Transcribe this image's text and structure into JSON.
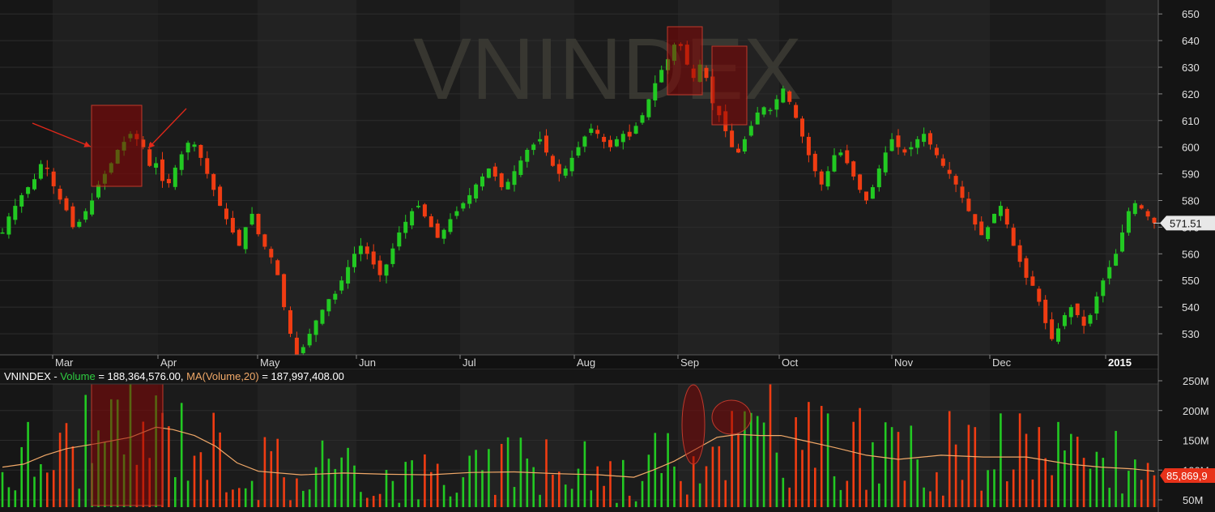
{
  "chart_data": [
    {
      "type": "candlestick",
      "title": "VNINDEX",
      "x_labels": [
        "Mar",
        "Apr",
        "May",
        "Jun",
        "Jul",
        "Aug",
        "Sep",
        "Oct",
        "Nov",
        "Dec",
        "2015"
      ],
      "y_ticks": [
        "650",
        "640",
        "630",
        "620",
        "610",
        "600",
        "590",
        "580",
        "570",
        "560",
        "550",
        "540",
        "530"
      ],
      "ylim": [
        520,
        652
      ],
      "last_price": "571.51",
      "grid": "on",
      "series": [
        {
          "name": "VNINDEX",
          "close_path": [
            [
              0,
              568
            ],
            [
              3,
              574
            ],
            [
              6,
              578
            ],
            [
              9,
              582
            ],
            [
              12,
              585
            ],
            [
              16,
              589
            ],
            [
              19,
              596
            ],
            [
              22,
              590
            ],
            [
              25,
              583
            ],
            [
              28,
              579
            ],
            [
              31,
              575
            ],
            [
              33,
              570
            ],
            [
              36,
              572
            ],
            [
              39,
              576
            ],
            [
              42,
              580
            ],
            [
              45,
              586
            ],
            [
              48,
              590
            ],
            [
              51,
              594
            ],
            [
              54,
              599
            ],
            [
              57,
              602
            ],
            [
              60,
              605
            ],
            [
              63,
              603
            ],
            [
              66,
              600
            ],
            [
              68,
              595
            ],
            [
              70,
              591
            ],
            [
              72,
              594
            ],
            [
              74,
              589
            ],
            [
              77,
              584
            ],
            [
              79,
              589
            ],
            [
              82,
              594
            ],
            [
              85,
              599
            ],
            [
              88,
              603
            ],
            [
              91,
              600
            ],
            [
              93,
              596
            ],
            [
              96,
              590
            ],
            [
              99,
              584
            ],
            [
              102,
              578
            ],
            [
              105,
              573
            ],
            [
              108,
              568
            ],
            [
              111,
              563
            ],
            [
              114,
              570
            ],
            [
              117,
              575
            ],
            [
              119,
              569
            ],
            [
              122,
              564
            ],
            [
              125,
              560
            ],
            [
              128,
              556
            ],
            [
              130,
              548
            ],
            [
              132,
              540
            ],
            [
              134,
              533
            ],
            [
              136,
              527
            ],
            [
              138,
              522
            ],
            [
              141,
              525
            ],
            [
              144,
              530
            ],
            [
              147,
              535
            ],
            [
              150,
              539
            ],
            [
              153,
              543
            ],
            [
              156,
              545
            ],
            [
              159,
              550
            ],
            [
              162,
              555
            ],
            [
              165,
              560
            ],
            [
              168,
              563
            ],
            [
              171,
              560
            ],
            [
              174,
              556
            ],
            [
              177,
              552
            ],
            [
              180,
              556
            ],
            [
              183,
              562
            ],
            [
              186,
              568
            ],
            [
              189,
              572
            ],
            [
              192,
              576
            ],
            [
              195,
              578
            ],
            [
              198,
              574
            ],
            [
              201,
              570
            ],
            [
              204,
              566
            ],
            [
              207,
              569
            ],
            [
              210,
              573
            ],
            [
              213,
              576
            ],
            [
              216,
              579
            ],
            [
              219,
              582
            ],
            [
              222,
              586
            ],
            [
              225,
              589
            ],
            [
              228,
              592
            ],
            [
              231,
              589
            ],
            [
              234,
              585
            ],
            [
              237,
              587
            ],
            [
              240,
              591
            ],
            [
              243,
              595
            ],
            [
              246,
              599
            ],
            [
              249,
              601
            ],
            [
              252,
              603
            ],
            [
              255,
              598
            ],
            [
              258,
              593
            ],
            [
              261,
              590
            ],
            [
              264,
              592
            ],
            [
              267,
              596
            ],
            [
              270,
              600
            ],
            [
              273,
              604
            ],
            [
              276,
              607
            ],
            [
              279,
              605
            ],
            [
              282,
              602
            ],
            [
              285,
              600
            ],
            [
              288,
              603
            ],
            [
              291,
              605
            ],
            [
              294,
              604
            ],
            [
              297,
              608
            ],
            [
              300,
              612
            ],
            [
              303,
              618
            ],
            [
              306,
              624
            ],
            [
              309,
              629
            ],
            [
              312,
              633
            ],
            [
              314,
              637
            ],
            [
              316,
              640
            ],
            [
              318,
              638
            ],
            [
              320,
              634
            ],
            [
              322,
              628
            ],
            [
              324,
              626
            ],
            [
              326,
              630
            ],
            [
              328,
              632
            ],
            [
              330,
              626
            ],
            [
              332,
              619
            ],
            [
              334,
              614
            ],
            [
              336,
              612
            ],
            [
              338,
              608
            ],
            [
              340,
              604
            ],
            [
              342,
              600
            ],
            [
              345,
              598
            ],
            [
              348,
              603
            ],
            [
              351,
              608
            ],
            [
              354,
              613
            ],
            [
              357,
              615
            ],
            [
              360,
              614
            ],
            [
              363,
              618
            ],
            [
              366,
              622
            ],
            [
              369,
              617
            ],
            [
              372,
              611
            ],
            [
              375,
              604
            ],
            [
              378,
              597
            ],
            [
              381,
              591
            ],
            [
              384,
              586
            ],
            [
              387,
              591
            ],
            [
              390,
              597
            ],
            [
              393,
              598
            ],
            [
              396,
              594
            ],
            [
              399,
              589
            ],
            [
              402,
              584
            ],
            [
              405,
              580
            ],
            [
              408,
              585
            ],
            [
              411,
              592
            ],
            [
              414,
              598
            ],
            [
              417,
              603
            ],
            [
              420,
              600
            ],
            [
              423,
              598
            ],
            [
              426,
              600
            ],
            [
              429,
              603
            ],
            [
              432,
              605
            ],
            [
              435,
              601
            ],
            [
              438,
              597
            ],
            [
              441,
              593
            ],
            [
              444,
              590
            ],
            [
              447,
              586
            ],
            [
              450,
              581
            ],
            [
              453,
              576
            ],
            [
              456,
              571
            ],
            [
              459,
              567
            ],
            [
              462,
              570
            ],
            [
              465,
              575
            ],
            [
              468,
              578
            ],
            [
              471,
              571
            ],
            [
              474,
              563
            ],
            [
              477,
              557
            ],
            [
              480,
              551
            ],
            [
              483,
              548
            ],
            [
              486,
              542
            ],
            [
              489,
              534
            ],
            [
              492,
              528
            ],
            [
              495,
              532
            ],
            [
              498,
              537
            ],
            [
              501,
              540
            ],
            [
              504,
              537
            ],
            [
              507,
              533
            ],
            [
              510,
              537
            ],
            [
              513,
              544
            ],
            [
              516,
              550
            ],
            [
              519,
              555
            ],
            [
              522,
              560
            ],
            [
              525,
              568
            ],
            [
              528,
              576
            ],
            [
              531,
              579
            ],
            [
              534,
              577
            ],
            [
              537,
              574
            ],
            [
              540,
              571.51
            ]
          ]
        }
      ]
    },
    {
      "type": "bar",
      "title": "VNINDEX - Volume",
      "y_ticks": [
        "250M",
        "200M",
        "150M",
        "100M",
        "50M"
      ],
      "ylim": [
        30,
        260
      ],
      "last_value": "85,869,9",
      "series": [
        {
          "name": "Volume",
          "style": "bars up/down colored"
        },
        {
          "name": "MA(Volume,20)",
          "ma_path": [
            [
              0,
              105
            ],
            [
              10,
              110
            ],
            [
              20,
              125
            ],
            [
              30,
              136
            ],
            [
              45,
              145
            ],
            [
              60,
              155
            ],
            [
              72,
              172
            ],
            [
              80,
              168
            ],
            [
              90,
              158
            ],
            [
              100,
              140
            ],
            [
              110,
              112
            ],
            [
              120,
              98
            ],
            [
              140,
              92
            ],
            [
              160,
              95
            ],
            [
              180,
              93
            ],
            [
              200,
              92
            ],
            [
              220,
              96
            ],
            [
              240,
              97
            ],
            [
              260,
              94
            ],
            [
              280,
              92
            ],
            [
              296,
              88
            ],
            [
              305,
              100
            ],
            [
              315,
              115
            ],
            [
              325,
              135
            ],
            [
              335,
              155
            ],
            [
              345,
              160
            ],
            [
              355,
              158
            ],
            [
              365,
              158
            ],
            [
              375,
              150
            ],
            [
              390,
              138
            ],
            [
              405,
              125
            ],
            [
              420,
              118
            ],
            [
              440,
              125
            ],
            [
              460,
              122
            ],
            [
              480,
              122
            ],
            [
              500,
              110
            ],
            [
              515,
              105
            ],
            [
              530,
              102
            ],
            [
              540,
              98
            ]
          ]
        }
      ],
      "legend_parts": [
        {
          "text": "VNINDEX - ",
          "color": "#ffffff"
        },
        {
          "text": "Volume",
          "color": "#2ecc40"
        },
        {
          "text": " = 188,364,576.00, ",
          "color": "#ffffff"
        },
        {
          "text": "MA(Volume,20)",
          "color": "#f0a868"
        },
        {
          "text": " = 187,997,408.00",
          "color": "#ffffff"
        }
      ]
    }
  ],
  "colors": {
    "up": "#22c922",
    "down": "#f03c12",
    "ma": "#f0a868",
    "highlight": "#8b0000",
    "watermark": "#3b3a33"
  }
}
